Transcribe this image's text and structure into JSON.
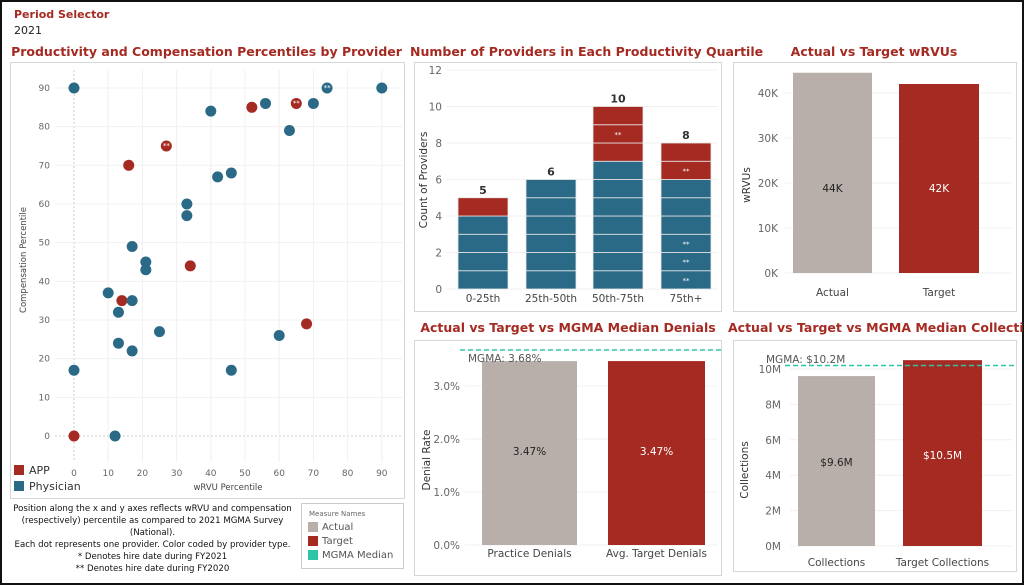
{
  "header": {
    "period_label": "Period Selector",
    "period_value": "2021"
  },
  "colors": {
    "app": "#a52a22",
    "physician": "#2b6a87",
    "actual": "#b8afab",
    "target": "#a52a22",
    "mgma": "#2ec4a8"
  },
  "chart_data": [
    {
      "id": "scatter",
      "type": "scatter",
      "title": "Productivity and Compensation Percentiles by Provider",
      "xlabel": "wRVU Percentile",
      "ylabel": "Compensation Percentile",
      "xlim": [
        0,
        90
      ],
      "ylim": [
        0,
        90
      ],
      "xticks": [
        "0",
        "10",
        "20",
        "30",
        "40",
        "50",
        "60",
        "70",
        "80",
        "90"
      ],
      "yticks": [
        "0",
        "10",
        "20",
        "30",
        "40",
        "50",
        "60",
        "70",
        "80",
        "90"
      ],
      "grid": true,
      "legend": "bottom-left",
      "series": [
        {
          "name": "APP",
          "points": [
            [
              52,
              85,
              ""
            ],
            [
              65,
              86,
              "**"
            ],
            [
              27,
              75,
              "**"
            ],
            [
              16,
              70,
              ""
            ],
            [
              34,
              44,
              ""
            ],
            [
              14,
              35,
              ""
            ],
            [
              68,
              29,
              ""
            ],
            [
              0,
              0,
              ""
            ]
          ]
        },
        {
          "name": "Physician",
          "points": [
            [
              0,
              90,
              ""
            ],
            [
              74,
              90,
              "**"
            ],
            [
              90,
              90,
              ""
            ],
            [
              56,
              86,
              ""
            ],
            [
              70,
              86,
              ""
            ],
            [
              40,
              84,
              ""
            ],
            [
              63,
              79,
              ""
            ],
            [
              42,
              67,
              ""
            ],
            [
              46,
              68,
              ""
            ],
            [
              33,
              60,
              ""
            ],
            [
              33,
              57,
              ""
            ],
            [
              17,
              49,
              ""
            ],
            [
              21,
              45,
              ""
            ],
            [
              21,
              43,
              ""
            ],
            [
              10,
              37,
              ""
            ],
            [
              17,
              35,
              ""
            ],
            [
              13,
              32,
              ""
            ],
            [
              25,
              27,
              ""
            ],
            [
              60,
              26,
              ""
            ],
            [
              13,
              24,
              ""
            ],
            [
              17,
              22,
              ""
            ],
            [
              0,
              17,
              ""
            ],
            [
              46,
              17,
              ""
            ],
            [
              12,
              0,
              ""
            ]
          ]
        }
      ]
    },
    {
      "id": "quartile",
      "type": "bar",
      "stacked": true,
      "title": "Number of Providers in Each Productivity Quartile",
      "ylabel": "Count of Providers",
      "ylim": [
        0,
        12
      ],
      "yticks": [
        "0",
        "2",
        "4",
        "6",
        "8",
        "10",
        "12"
      ],
      "categories": [
        "0-25th",
        "25th-50th",
        "50th-75th",
        "75th+"
      ],
      "totals": [
        "5",
        "6",
        "10",
        "8"
      ],
      "series": [
        {
          "key": "physician",
          "values": [
            4,
            6,
            7,
            6
          ]
        },
        {
          "key": "app",
          "values": [
            1,
            0,
            3,
            2
          ]
        }
      ],
      "segment_marks": [
        {
          "category": 2,
          "segment": 8,
          "text": "**"
        },
        {
          "category": 3,
          "segment": 6,
          "text": "**"
        },
        {
          "category": 3,
          "segment": 2,
          "text": "**"
        },
        {
          "category": 3,
          "segment": 1,
          "text": "**"
        },
        {
          "category": 3,
          "segment": 0,
          "text": "**"
        }
      ]
    },
    {
      "id": "wrvu",
      "type": "bar",
      "title": "Actual vs Target wRVUs",
      "ylabel": "wRVUs",
      "ylim": [
        0,
        45000
      ],
      "yticks": [
        {
          "v": 0,
          "t": "0K"
        },
        {
          "v": 10000,
          "t": "10K"
        },
        {
          "v": 20000,
          "t": "20K"
        },
        {
          "v": 30000,
          "t": "30K"
        },
        {
          "v": 40000,
          "t": "40K"
        }
      ],
      "categories": [
        "Actual",
        "Target"
      ],
      "values": [
        44500,
        42000
      ],
      "labels": [
        "44K",
        "42K"
      ],
      "color_keys": [
        "actual",
        "target"
      ]
    },
    {
      "id": "denials",
      "type": "bar",
      "title": "Actual vs Target vs MGMA Median Denials",
      "ylabel": "Denial Rate",
      "ylim": [
        0,
        3.85
      ],
      "yticks": [
        {
          "v": 0,
          "t": "0.0%"
        },
        {
          "v": 1,
          "t": "1.0%"
        },
        {
          "v": 2,
          "t": "2.0%"
        },
        {
          "v": 3,
          "t": "3.0%"
        }
      ],
      "categories": [
        "Practice Denials",
        "Avg. Target Denials"
      ],
      "values": [
        3.47,
        3.47
      ],
      "labels": [
        "3.47%",
        "3.47%"
      ],
      "color_keys": [
        "actual",
        "target"
      ],
      "reference": {
        "value": 3.68,
        "label": "MGMA: 3.68%"
      }
    },
    {
      "id": "collections",
      "type": "bar",
      "title": "Actual vs Target vs MGMA Median Collections",
      "ylabel": "Collections",
      "ylim": [
        0,
        10.8
      ],
      "yticks": [
        {
          "v": 0,
          "t": "0M"
        },
        {
          "v": 2,
          "t": "2M"
        },
        {
          "v": 4,
          "t": "4M"
        },
        {
          "v": 6,
          "t": "6M"
        },
        {
          "v": 8,
          "t": "8M"
        },
        {
          "v": 10,
          "t": "10M"
        }
      ],
      "categories": [
        "Collections",
        "Target Collections"
      ],
      "values": [
        9.6,
        10.5
      ],
      "labels": [
        "$9.6M",
        "$10.5M"
      ],
      "color_keys": [
        "actual",
        "target"
      ],
      "reference": {
        "value": 10.2,
        "label": "MGMA: $10.2M"
      }
    }
  ],
  "notes": {
    "line1": "Position along the x and y axes reflects wRVU and compensation (respectively) percentile as compared to 2021 MGMA Survey (National).",
    "line2": "Each dot represents one provider. Color coded by provider type.",
    "line3": "* Denotes hire date during FY2021",
    "line4": "** Denotes hire date during FY2020"
  },
  "legend": {
    "title": "Measure Names",
    "items": [
      "Actual",
      "Target",
      "MGMA Median"
    ]
  },
  "scatter_legend": {
    "items": [
      "APP",
      "Physician"
    ]
  }
}
